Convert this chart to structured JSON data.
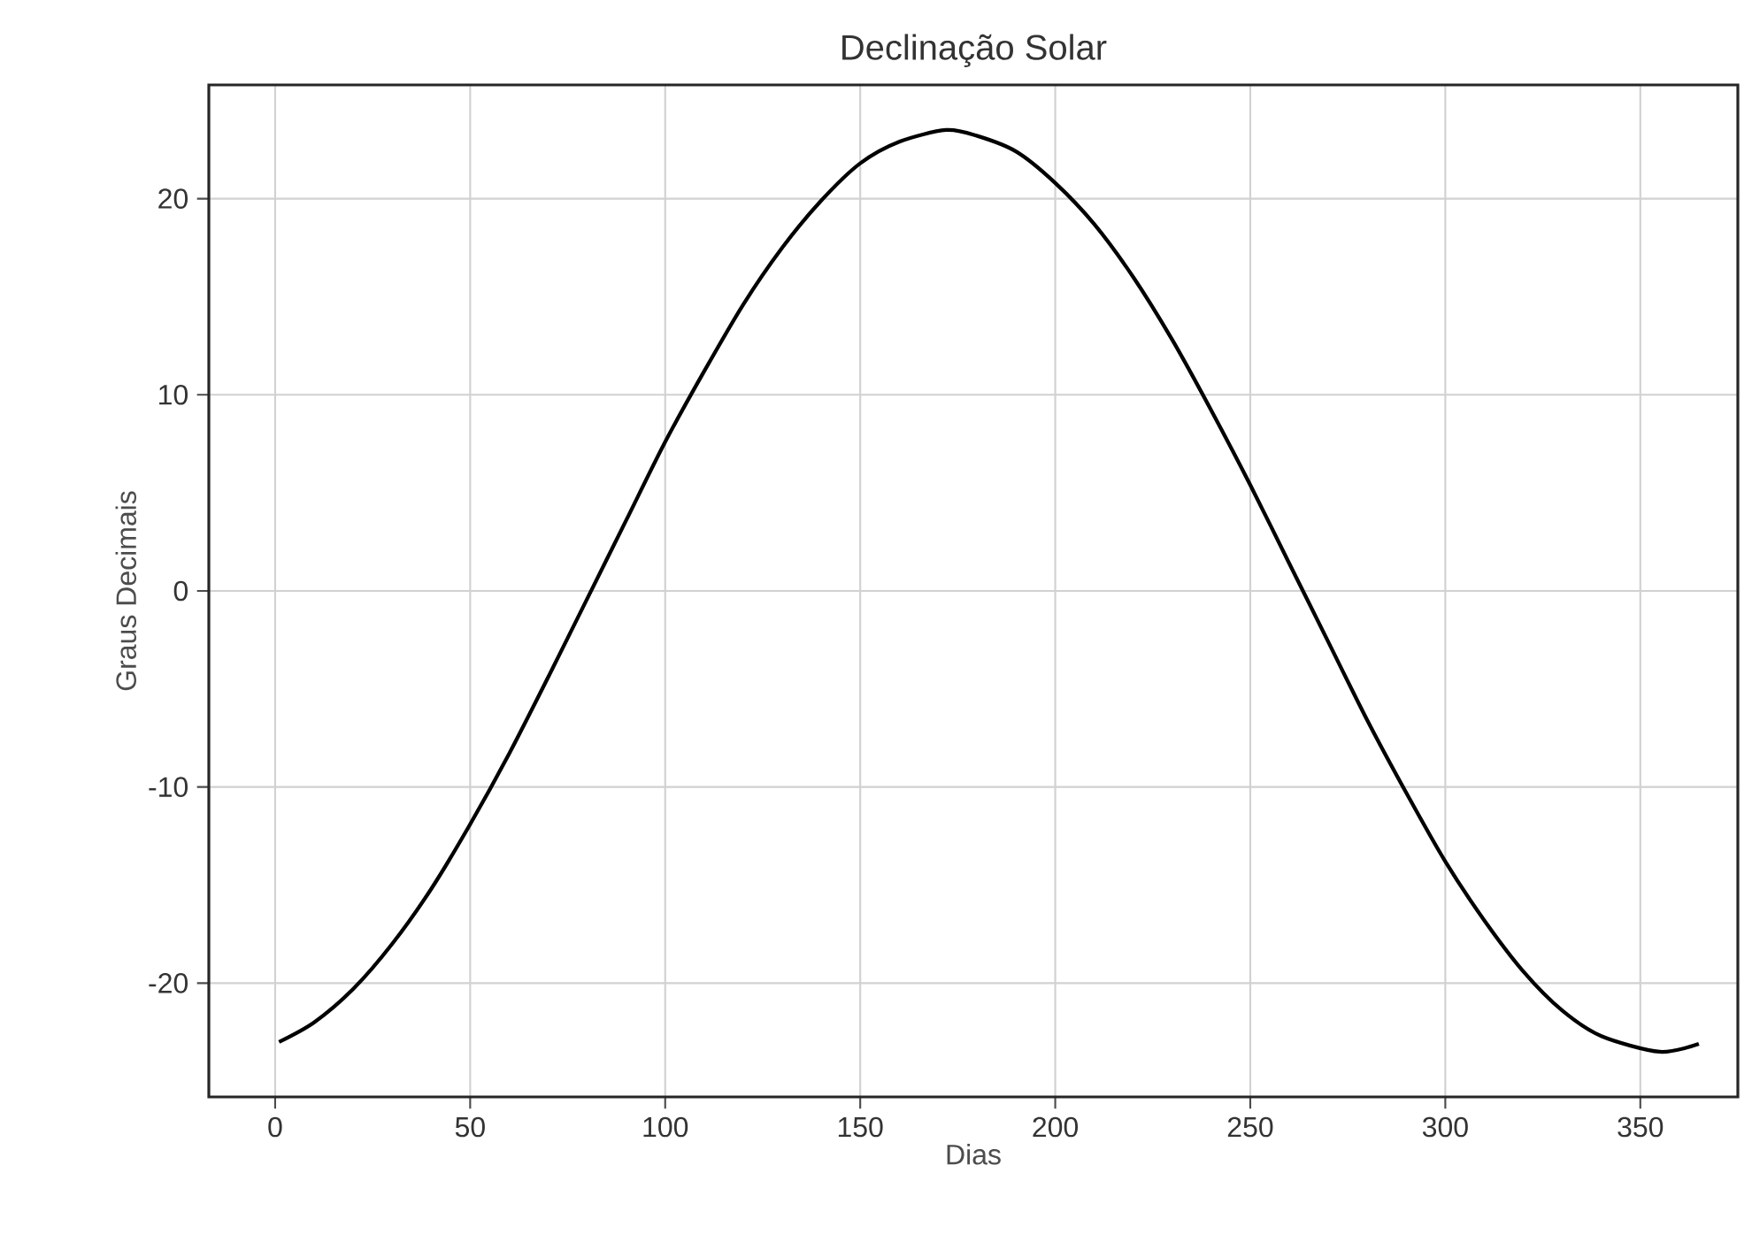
{
  "chart_data": {
    "type": "line",
    "title": "Declinação Solar",
    "xlabel": "Dias",
    "ylabel": "Graus Decimais",
    "x": [
      1,
      10,
      20,
      30,
      40,
      50,
      60,
      70,
      80,
      90,
      100,
      110,
      120,
      130,
      140,
      150,
      160,
      172,
      180,
      190,
      200,
      210,
      220,
      230,
      240,
      250,
      260,
      270,
      280,
      290,
      300,
      310,
      320,
      330,
      340,
      355,
      365
    ],
    "series": [
      {
        "color": "#000000",
        "values": [
          -23.0,
          -22.0,
          -20.3,
          -18.0,
          -15.2,
          -11.9,
          -8.3,
          -4.4,
          -0.4,
          3.6,
          7.6,
          11.2,
          14.6,
          17.5,
          19.9,
          21.8,
          22.9,
          23.5,
          23.2,
          22.4,
          20.8,
          18.7,
          16.0,
          12.8,
          9.2,
          5.4,
          1.4,
          -2.6,
          -6.6,
          -10.3,
          -13.8,
          -16.8,
          -19.4,
          -21.4,
          -22.7,
          -23.5,
          -23.1
        ]
      }
    ],
    "xlim": [
      -17,
      375
    ],
    "ylim": [
      -25.8,
      25.8
    ],
    "xticks": [
      0,
      50,
      100,
      150,
      200,
      250,
      300,
      350
    ],
    "yticks": [
      -20,
      -10,
      0,
      10,
      20
    ],
    "grid": true,
    "marker": "none",
    "line_style": "solid"
  }
}
